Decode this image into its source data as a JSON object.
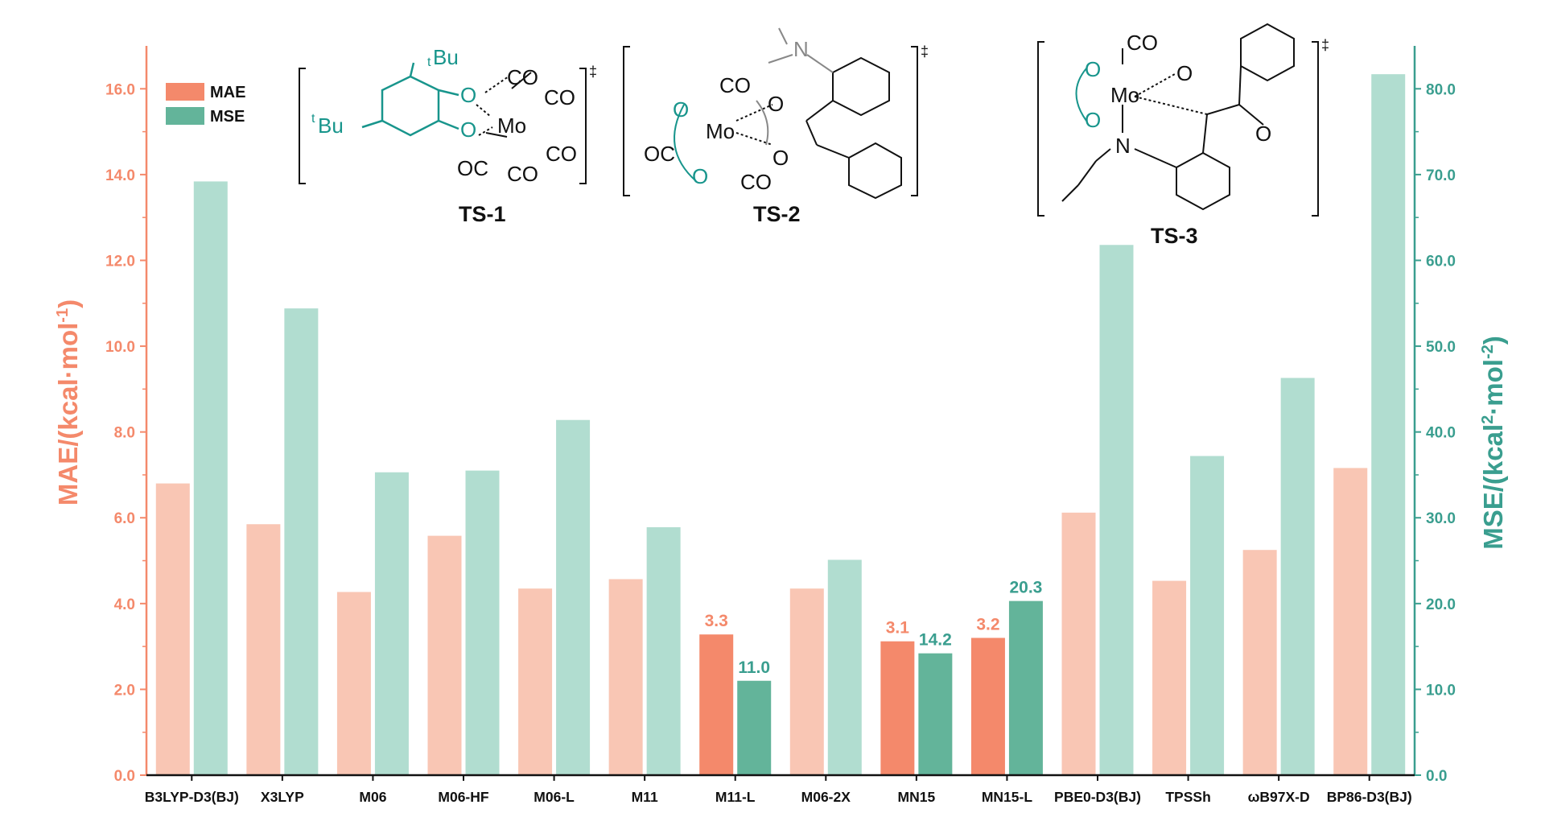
{
  "chart_data": {
    "type": "bar",
    "categories": [
      "B3LYP-D3(BJ)",
      "X3LYP",
      "M06",
      "M06-HF",
      "M06-L",
      "M11",
      "M11-L",
      "M06-2X",
      "MN15",
      "MN15-L",
      "PBE0-D3(BJ)",
      "TPSSh",
      "ωB97X-D",
      "BP86-D3(BJ)"
    ],
    "series": [
      {
        "name": "MAE",
        "axis": "left",
        "color": "#f4896b",
        "light_color": "#f9c6b4",
        "values": [
          6.8,
          5.85,
          4.27,
          5.58,
          4.35,
          4.57,
          3.28,
          4.35,
          3.12,
          3.2,
          6.12,
          4.53,
          5.25,
          7.16
        ]
      },
      {
        "name": "MSE",
        "axis": "right",
        "color": "#63b49a",
        "light_color": "#b1ddd0",
        "values": [
          69.2,
          54.4,
          35.3,
          35.5,
          41.4,
          28.9,
          11.0,
          25.1,
          14.2,
          20.3,
          61.8,
          37.2,
          46.3,
          81.7
        ]
      }
    ],
    "highlighted_categories": [
      "M11-L",
      "MN15",
      "MN15-L"
    ],
    "data_labels": {
      "M11-L": {
        "MAE": "3.3",
        "MSE": "11.0"
      },
      "MN15": {
        "MAE": "3.1",
        "MSE": "14.2"
      },
      "MN15-L": {
        "MAE": "3.2",
        "MSE": "20.3"
      }
    },
    "y_left": {
      "label_main": "MAE/(kcal·mol",
      "label_sup": "-1",
      "label_end": ")",
      "ylim": [
        0,
        17
      ],
      "ticks": [
        "0.0",
        "2.0",
        "4.0",
        "6.0",
        "8.0",
        "10.0",
        "12.0",
        "14.0",
        "16.0"
      ],
      "color": "#f4896b"
    },
    "y_right": {
      "label_main_a": "MSE/(kcal",
      "label_sup_a": "2",
      "label_mid": "·mol",
      "label_sup_b": "-2",
      "label_end": ")",
      "ylim": [
        0,
        85
      ],
      "ticks": [
        "0.0",
        "10.0",
        "20.0",
        "30.0",
        "40.0",
        "50.0",
        "60.0",
        "70.0",
        "80.0"
      ],
      "color": "#3a9e8f"
    },
    "legend": {
      "placement": "top-left",
      "items": [
        "MAE",
        "MSE"
      ]
    },
    "grid": false
  },
  "structures": {
    "ts1": {
      "label": "TS-1",
      "dagger": "‡",
      "mo": "Mo",
      "co": "CO",
      "oc": "OC",
      "o": "O",
      "tbu_sup": "t",
      "tbu": "Bu"
    },
    "ts2": {
      "label": "TS-2",
      "dagger": "‡",
      "mo": "Mo",
      "co": "CO",
      "oc": "OC",
      "o": "O",
      "n": "N"
    },
    "ts3": {
      "label": "TS-3",
      "dagger": "‡",
      "mo": "Mo",
      "co": "CO",
      "o": "O",
      "n": "N"
    }
  }
}
